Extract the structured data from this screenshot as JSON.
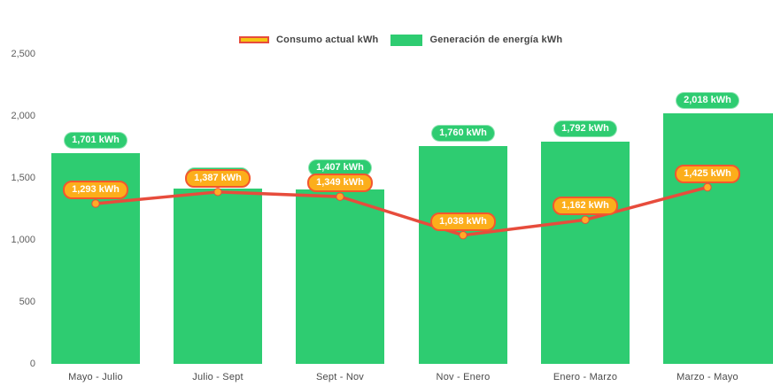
{
  "legend": {
    "consumo": {
      "label": "Consumo actual kWh"
    },
    "generacion": {
      "label": "Generación de energía kWh"
    }
  },
  "colors": {
    "bar": "#2ECC71",
    "line": "#E74C3C",
    "point_fill": "#FFAB26",
    "bar_pill_bg": "#2ECC71",
    "line_pill_bg": "#FCAE1B",
    "line_pill_border": "#F2572F",
    "legend_line_swatch_fill": "#F3C512",
    "legend_line_swatch_border": "#E74C3C",
    "axis_text": "#5E5E5E"
  },
  "chart_data": {
    "type": "combo-bar-line",
    "title": "",
    "categories": [
      "Mayo - Julio",
      "Julio - Sept",
      "Sept - Nov",
      "Nov - Enero",
      "Enero - Marzo",
      "Marzo - Mayo"
    ],
    "y_axis": {
      "tick_values": [
        0,
        500,
        1000,
        1500,
        2000,
        2500
      ],
      "tick_labels": [
        "0",
        "500",
        "1,000",
        "1,500",
        "2,000",
        "2,500"
      ],
      "ylim": [
        0,
        2500
      ],
      "grid": false
    },
    "legend_position": "top-center",
    "series": [
      {
        "name": "Generación de energía kWh",
        "type": "bar",
        "color": "#2ECC71",
        "values": [
          1701,
          1412,
          1407,
          1760,
          1792,
          2018
        ],
        "labels": [
          "1,701 kWh",
          "1,412 kWh",
          "1,407 kWh",
          "1,760 kWh",
          "1,792 kWh",
          "2,018 kWh"
        ],
        "label_occluded_by_line_label": [
          false,
          true,
          false,
          false,
          false,
          false
        ]
      },
      {
        "name": "Consumo actual kWh",
        "type": "line",
        "color": "#E74C3C",
        "values": [
          1293,
          1387,
          1349,
          1038,
          1162,
          1425
        ],
        "labels": [
          "1,293 kWh",
          "1,387 kWh",
          "1,349 kWh",
          "1,038 kWh",
          "1,162 kWh",
          "1,425 kWh"
        ]
      }
    ]
  }
}
